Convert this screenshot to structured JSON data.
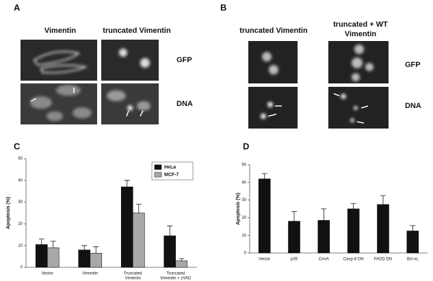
{
  "panels": {
    "A": {
      "label": "A",
      "columns": [
        [
          "Vimentin"
        ],
        [
          "truncated Vimentin"
        ]
      ],
      "rows": [
        "GFP",
        "DNA"
      ]
    },
    "B": {
      "label": "B",
      "columns": [
        [
          "truncated Vimentin"
        ],
        [
          "truncated + WT",
          "Vimentin"
        ]
      ],
      "rows": [
        "GFP",
        "DNA"
      ]
    },
    "C": {
      "label": "C"
    },
    "D": {
      "label": "D"
    }
  },
  "chart_data": [
    {
      "type": "bar",
      "ylabel": "Apoptosis (%)",
      "categories": [
        [
          "Vector"
        ],
        [
          "Vimentin"
        ],
        [
          "Truncated",
          "Vimentin"
        ],
        [
          "Truncated",
          "Vimentin + zVAD"
        ]
      ],
      "series": [
        {
          "name": "HeLa",
          "color": "#111111",
          "values": [
            10.5,
            8,
            37,
            14.5
          ],
          "errors": [
            2.5,
            2,
            3,
            4.5
          ]
        },
        {
          "name": "MCF-7",
          "color": "#a8a8a8",
          "values": [
            9,
            6.5,
            25,
            3
          ],
          "errors": [
            3,
            3,
            4,
            1
          ]
        }
      ],
      "ylim": [
        0,
        50
      ],
      "yticks": [
        0,
        10,
        20,
        30,
        40,
        50
      ],
      "legend": "upper right"
    },
    {
      "type": "bar",
      "ylabel": "Apoptosis (%)",
      "categories": [
        [
          "Vector"
        ],
        [
          "p35"
        ],
        [
          "CrmA"
        ],
        [
          "Casp-8 DN"
        ],
        [
          "FADD DN"
        ],
        [
          "Bcl-xL"
        ]
      ],
      "series": [
        {
          "color": "#111111",
          "values": [
            42,
            18,
            18.5,
            25,
            27.5,
            12.5
          ],
          "errors": [
            3,
            5.5,
            6.5,
            3,
            5,
            3
          ]
        }
      ],
      "ylim": [
        0,
        50
      ],
      "yticks": [
        0,
        10,
        20,
        30,
        40,
        50
      ]
    }
  ]
}
